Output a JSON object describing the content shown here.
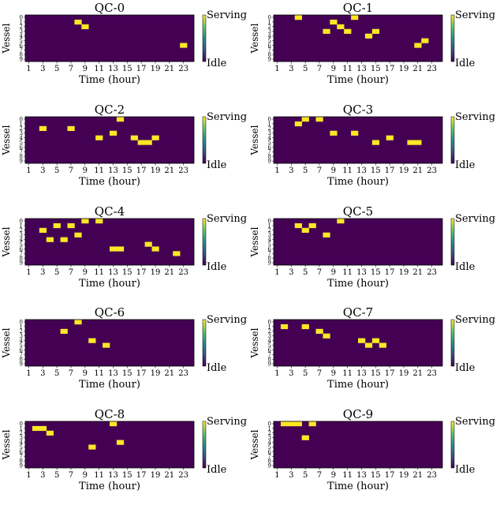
{
  "colors": {
    "idle": "#440154",
    "serving": "#fde725"
  },
  "chart_data": [
    {
      "type": "heatmap",
      "title": "QC-0",
      "xlabel": "Time (hour)",
      "ylabel": "Vessel",
      "x_ticks": [
        "1",
        "3",
        "5",
        "7",
        "9",
        "11",
        "13",
        "15",
        "17",
        "19",
        "21",
        "23"
      ],
      "y_ticks": [
        "0",
        "1",
        "2",
        "3",
        "4",
        "5",
        "6",
        "7",
        "8",
        "9"
      ],
      "colorbar_labels": [
        "Serving",
        "Idle"
      ],
      "serving_cells": [
        [
          8,
          1
        ],
        [
          9,
          2
        ],
        [
          23,
          6
        ]
      ]
    },
    {
      "type": "heatmap",
      "title": "QC-1",
      "xlabel": "Time (hour)",
      "ylabel": "Vessel",
      "x_ticks": [
        "1",
        "3",
        "5",
        "7",
        "9",
        "11",
        "13",
        "15",
        "17",
        "19",
        "21",
        "23"
      ],
      "y_ticks": [
        "0",
        "1",
        "2",
        "3",
        "4",
        "5",
        "6",
        "7",
        "8",
        "9"
      ],
      "colorbar_labels": [
        "Serving",
        "Idle"
      ],
      "serving_cells": [
        [
          4,
          0
        ],
        [
          12,
          0
        ],
        [
          9,
          1
        ],
        [
          10,
          2
        ],
        [
          8,
          3
        ],
        [
          11,
          3
        ],
        [
          15,
          3
        ],
        [
          14,
          4
        ],
        [
          22,
          5
        ],
        [
          21,
          6
        ]
      ]
    },
    {
      "type": "heatmap",
      "title": "QC-2",
      "xlabel": "Time (hour)",
      "ylabel": "Vessel",
      "x_ticks": [
        "1",
        "3",
        "5",
        "7",
        "9",
        "11",
        "13",
        "15",
        "17",
        "19",
        "21",
        "23"
      ],
      "y_ticks": [
        "0",
        "1",
        "2",
        "3",
        "4",
        "5",
        "6",
        "7",
        "8",
        "9"
      ],
      "colorbar_labels": [
        "Serving",
        "Idle"
      ],
      "serving_cells": [
        [
          14,
          0
        ],
        [
          3,
          2
        ],
        [
          7,
          2
        ],
        [
          13,
          3
        ],
        [
          11,
          4
        ],
        [
          16,
          4
        ],
        [
          19,
          4
        ],
        [
          17,
          5
        ],
        [
          18,
          5
        ]
      ]
    },
    {
      "type": "heatmap",
      "title": "QC-3",
      "xlabel": "Time (hour)",
      "ylabel": "Vessel",
      "x_ticks": [
        "1",
        "3",
        "5",
        "7",
        "9",
        "11",
        "13",
        "15",
        "17",
        "19",
        "21",
        "23"
      ],
      "y_ticks": [
        "0",
        "1",
        "2",
        "3",
        "4",
        "5",
        "6",
        "7",
        "8",
        "9"
      ],
      "colorbar_labels": [
        "Serving",
        "Idle"
      ],
      "serving_cells": [
        [
          5,
          0
        ],
        [
          7,
          0
        ],
        [
          4,
          1
        ],
        [
          9,
          3
        ],
        [
          12,
          3
        ],
        [
          17,
          4
        ],
        [
          15,
          5
        ],
        [
          20,
          5
        ],
        [
          21,
          5
        ]
      ]
    },
    {
      "type": "heatmap",
      "title": "QC-4",
      "xlabel": "Time (hour)",
      "ylabel": "Vessel",
      "x_ticks": [
        "1",
        "3",
        "5",
        "7",
        "9",
        "11",
        "13",
        "15",
        "17",
        "19",
        "21",
        "23"
      ],
      "y_ticks": [
        "0",
        "1",
        "2",
        "3",
        "4",
        "5",
        "6",
        "7",
        "8",
        "9"
      ],
      "colorbar_labels": [
        "Serving",
        "Idle"
      ],
      "serving_cells": [
        [
          9,
          0
        ],
        [
          11,
          0
        ],
        [
          5,
          1
        ],
        [
          7,
          1
        ],
        [
          3,
          2
        ],
        [
          8,
          3
        ],
        [
          4,
          4
        ],
        [
          6,
          4
        ],
        [
          18,
          5
        ],
        [
          13,
          6
        ],
        [
          14,
          6
        ],
        [
          19,
          6
        ],
        [
          22,
          7
        ]
      ]
    },
    {
      "type": "heatmap",
      "title": "QC-5",
      "xlabel": "Time (hour)",
      "ylabel": "Vessel",
      "x_ticks": [
        "1",
        "3",
        "5",
        "7",
        "9",
        "11",
        "13",
        "15",
        "17",
        "19",
        "21",
        "23"
      ],
      "y_ticks": [
        "0",
        "1",
        "2",
        "3",
        "4",
        "5",
        "6",
        "7",
        "8",
        "9"
      ],
      "colorbar_labels": [
        "Serving",
        "Idle"
      ],
      "serving_cells": [
        [
          10,
          0
        ],
        [
          4,
          1
        ],
        [
          6,
          1
        ],
        [
          5,
          2
        ],
        [
          8,
          3
        ]
      ]
    },
    {
      "type": "heatmap",
      "title": "QC-6",
      "xlabel": "Time (hour)",
      "ylabel": "Vessel",
      "x_ticks": [
        "1",
        "3",
        "5",
        "7",
        "9",
        "11",
        "13",
        "15",
        "17",
        "19",
        "21",
        "23"
      ],
      "y_ticks": [
        "0",
        "1",
        "2",
        "3",
        "4",
        "5",
        "6",
        "7",
        "8",
        "9"
      ],
      "colorbar_labels": [
        "Serving",
        "Idle"
      ],
      "serving_cells": [
        [
          8,
          0
        ],
        [
          6,
          2
        ],
        [
          10,
          4
        ],
        [
          12,
          5
        ]
      ]
    },
    {
      "type": "heatmap",
      "title": "QC-7",
      "xlabel": "Time (hour)",
      "ylabel": "Vessel",
      "x_ticks": [
        "1",
        "3",
        "5",
        "7",
        "9",
        "11",
        "13",
        "15",
        "17",
        "19",
        "21",
        "23"
      ],
      "y_ticks": [
        "0",
        "1",
        "2",
        "3",
        "4",
        "5",
        "6",
        "7",
        "8",
        "9"
      ],
      "colorbar_labels": [
        "Serving",
        "Idle"
      ],
      "serving_cells": [
        [
          2,
          1
        ],
        [
          5,
          1
        ],
        [
          7,
          2
        ],
        [
          8,
          3
        ],
        [
          13,
          4
        ],
        [
          15,
          4
        ],
        [
          14,
          5
        ],
        [
          16,
          5
        ]
      ]
    },
    {
      "type": "heatmap",
      "title": "QC-8",
      "xlabel": "Time (hour)",
      "ylabel": "Vessel",
      "x_ticks": [
        "1",
        "3",
        "5",
        "7",
        "9",
        "11",
        "13",
        "15",
        "17",
        "19",
        "21",
        "23"
      ],
      "y_ticks": [
        "0",
        "1",
        "2",
        "3",
        "4",
        "5",
        "6",
        "7",
        "8",
        "9"
      ],
      "colorbar_labels": [
        "Serving",
        "Idle"
      ],
      "serving_cells": [
        [
          13,
          0
        ],
        [
          2,
          1
        ],
        [
          3,
          1
        ],
        [
          4,
          2
        ],
        [
          14,
          4
        ],
        [
          10,
          5
        ]
      ]
    },
    {
      "type": "heatmap",
      "title": "QC-9",
      "xlabel": "Time (hour)",
      "ylabel": "Vessel",
      "x_ticks": [
        "1",
        "3",
        "5",
        "7",
        "9",
        "11",
        "13",
        "15",
        "17",
        "19",
        "21",
        "23"
      ],
      "y_ticks": [
        "0",
        "1",
        "2",
        "3",
        "4",
        "5",
        "6",
        "7",
        "8",
        "9"
      ],
      "colorbar_labels": [
        "Serving",
        "Idle"
      ],
      "serving_cells": [
        [
          2,
          0
        ],
        [
          3,
          0
        ],
        [
          4,
          0
        ],
        [
          6,
          0
        ],
        [
          5,
          3
        ]
      ]
    }
  ]
}
